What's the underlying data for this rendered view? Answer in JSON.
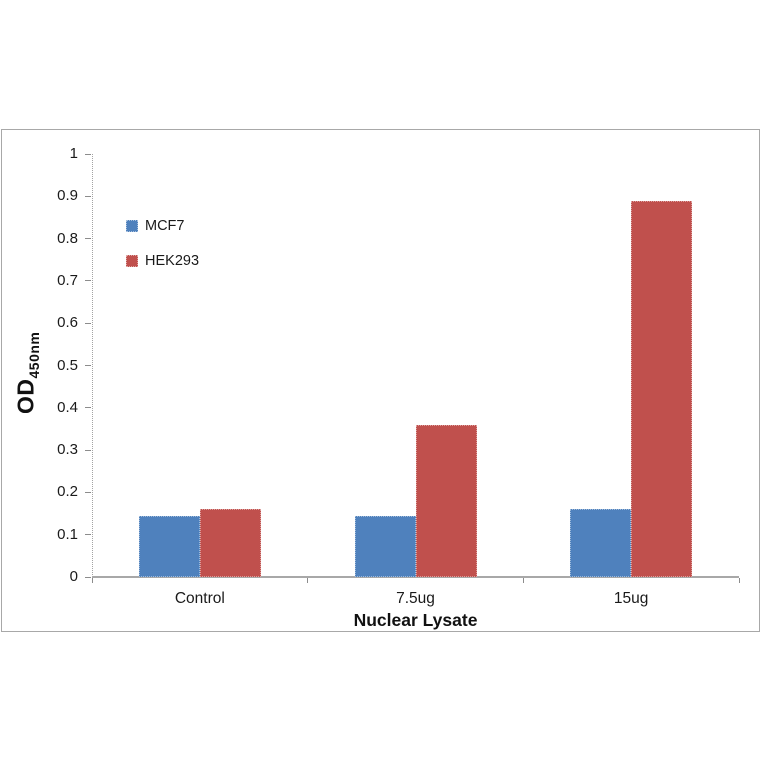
{
  "chart_data": {
    "type": "bar",
    "title": "",
    "categories": [
      "Control",
      "7.5ug",
      "15ug"
    ],
    "series": [
      {
        "name": "MCF7",
        "color": "#4F81BD",
        "values": [
          0.145,
          0.145,
          0.16
        ]
      },
      {
        "name": "HEK293",
        "color": "#C0504D",
        "values": [
          0.16,
          0.36,
          0.89
        ]
      }
    ],
    "xlabel": "Nuclear Lysate",
    "ylabel_main": "OD",
    "ylabel_sub": "450nm",
    "ylim": [
      0,
      1
    ],
    "ytick_step": 0.1,
    "yticks": [
      "0",
      "0.1",
      "0.2",
      "0.3",
      "0.4",
      "0.5",
      "0.6",
      "0.7",
      "0.8",
      "0.9",
      "1"
    ],
    "legend_position": "upper-left-inside",
    "grid": false
  }
}
